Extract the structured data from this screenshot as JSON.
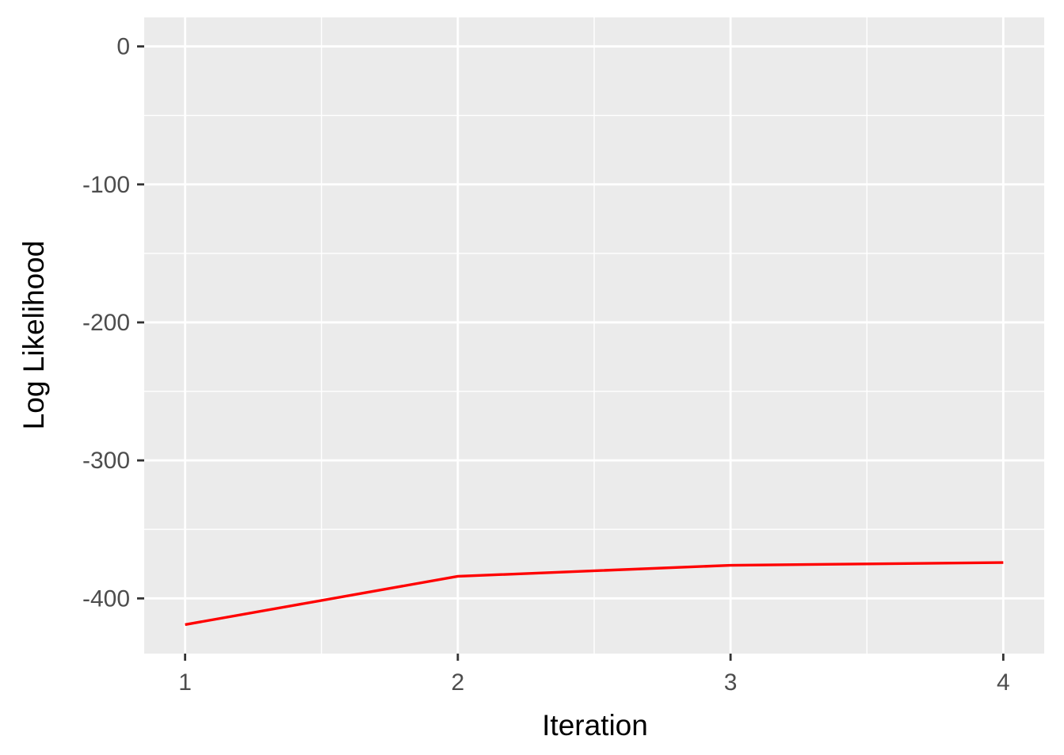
{
  "chart_data": {
    "type": "line",
    "title": "",
    "xlabel": "Iteration",
    "ylabel": "Log Likelihood",
    "x": [
      1,
      2,
      3,
      4
    ],
    "series": [
      {
        "values": [
          -419,
          -384,
          -376,
          -374
        ]
      }
    ],
    "xlim": [
      0.85,
      4.15
    ],
    "ylim": [
      -440,
      21
    ],
    "x_ticks": [
      1,
      2,
      3,
      4
    ],
    "x_tick_labels": [
      "1",
      "2",
      "3",
      "4"
    ],
    "y_ticks": [
      0,
      -100,
      -200,
      -300,
      -400
    ],
    "y_tick_labels": [
      "0",
      "-100",
      "-200",
      "-300",
      "-400"
    ],
    "grid": true,
    "colors": {
      "panel_background": "#ebebeb",
      "grid_line": "#ffffff",
      "tick_mark": "#333333",
      "series_line": "#ff0000"
    }
  }
}
